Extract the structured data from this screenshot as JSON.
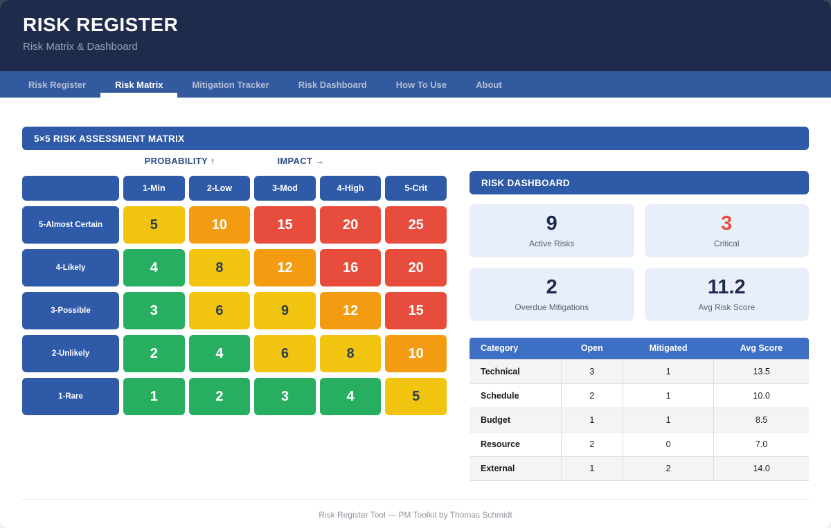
{
  "header": {
    "title": "RISK REGISTER",
    "subtitle": "Risk Matrix & Dashboard"
  },
  "nav": {
    "tabs": [
      {
        "label": "Risk Register",
        "active": false
      },
      {
        "label": "Risk Matrix",
        "active": true
      },
      {
        "label": "Mitigation Tracker",
        "active": false
      },
      {
        "label": "Risk Dashboard",
        "active": false
      },
      {
        "label": "How To Use",
        "active": false
      },
      {
        "label": "About",
        "active": false
      }
    ]
  },
  "matrix": {
    "banner": "5×5 RISK ASSESSMENT MATRIX",
    "axis_labels": {
      "probability": "PROBABILITY ↑",
      "impact": "IMPACT →"
    },
    "col_headers": [
      "1-Min",
      "2-Low",
      "3-Mod",
      "4-High",
      "5-Crit"
    ],
    "row_headers": [
      "5-Almost Certain",
      "4-Likely",
      "3-Possible",
      "2-Unlikely",
      "1-Rare"
    ],
    "cells": [
      [
        5,
        10,
        15,
        20,
        25
      ],
      [
        4,
        8,
        12,
        16,
        20
      ],
      [
        3,
        6,
        9,
        12,
        15
      ],
      [
        2,
        4,
        6,
        8,
        10
      ],
      [
        1,
        2,
        3,
        4,
        5
      ]
    ],
    "severity_colors": {
      "low": "#27ae60",
      "medium": "#f1c40f",
      "high": "#f39c12",
      "critical": "#e74c3c"
    },
    "header_color": "#2e5aa8"
  },
  "dashboard": {
    "banner": "RISK DASHBOARD",
    "stats": [
      {
        "value": "9",
        "label": "Active Risks",
        "color": "#1e2b4b"
      },
      {
        "value": "3",
        "label": "Critical",
        "color": "#e74c3c"
      },
      {
        "value": "2",
        "label": "Overdue Mitigations",
        "color": "#1e2b4b"
      },
      {
        "value": "11.2",
        "label": "Avg Risk Score",
        "color": "#1e2b4b"
      }
    ],
    "table": {
      "headers": [
        "Category",
        "Open",
        "Mitigated",
        "Avg Score"
      ],
      "rows": [
        [
          "Technical",
          "3",
          "1",
          "13.5"
        ],
        [
          "Schedule",
          "2",
          "1",
          "10.0"
        ],
        [
          "Budget",
          "1",
          "1",
          "8.5"
        ],
        [
          "Resource",
          "2",
          "0",
          "7.0"
        ],
        [
          "External",
          "1",
          "2",
          "14.0"
        ]
      ]
    }
  },
  "footer": {
    "text": "Risk Register Tool — PM Toolkit by Thomas Schmidt"
  }
}
